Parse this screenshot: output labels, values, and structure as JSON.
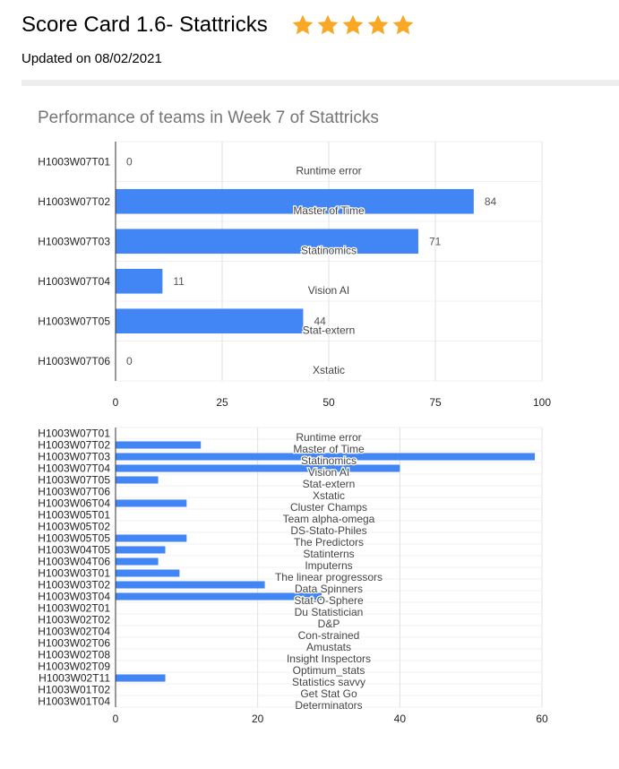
{
  "header": {
    "title": "Score Card 1.6- Stattricks",
    "rating": 5,
    "star_color": "#F9A825",
    "updated": "Updated on 08/02/2021"
  },
  "colors": {
    "bar": "#4285F4",
    "grid": "#e0e0e0",
    "axis": "#333333",
    "label": "#555555"
  },
  "chart_data": [
    {
      "type": "bar",
      "orientation": "horizontal",
      "title": "Performance of teams in Week 7 of Stattricks",
      "categories": [
        "H1003W07T01",
        "H1003W07T02",
        "H1003W07T03",
        "H1003W07T04",
        "H1003W07T05",
        "H1003W07T06"
      ],
      "team_names": [
        "Runtime error",
        "Master of Time",
        "Statinomics",
        "Vision AI",
        "Stat-extern",
        "Xstatic"
      ],
      "values": [
        0,
        84,
        71,
        11,
        44,
        0
      ],
      "xlim": [
        0,
        100
      ],
      "xticks": [
        0,
        25,
        50,
        75,
        100
      ],
      "grid": true,
      "data_labels": true
    },
    {
      "type": "bar",
      "orientation": "horizontal",
      "title": "",
      "categories": [
        "H1003W07T01",
        "H1003W07T02",
        "H1003W07T03",
        "H1003W07T04",
        "H1003W07T05",
        "H1003W07T06",
        "H1003W06T04",
        "H1003W05T01",
        "H1003W05T02",
        "H1003W05T05",
        "H1003W04T05",
        "H1003W04T06",
        "H1003W03T01",
        "H1003W03T02",
        "H1003W03T04",
        "H1003W02T01",
        "H1003W02T02",
        "H1003W02T04",
        "H1003W02T06",
        "H1003W02T08",
        "H1003W02T09",
        "H1003W02T11",
        "H1003W01T02",
        "H1003W01T04"
      ],
      "team_names": [
        "Runtime error",
        "Master of Time",
        "Statinomics",
        "Vision AI",
        "Stat-extern",
        "Xstatic",
        "Cluster Champs",
        "Team alpha-omega",
        "DS-Stato-Philes",
        "The Predictors",
        "Statinterns",
        "Imputerns",
        "The linear progressors",
        "Data Spinners",
        "Stat-O-Sphere",
        "Du Statistician",
        "D&P",
        "Con-strained",
        "Amustats",
        "Insight Inspectors",
        "Optimum_stats",
        "Statistics savvy",
        "Get Stat Go",
        "Determinators"
      ],
      "values": [
        0,
        12,
        59,
        40,
        6,
        0,
        10,
        0,
        0,
        10,
        7,
        6,
        9,
        21,
        29,
        0,
        0,
        0,
        0,
        0,
        0,
        7,
        0,
        0
      ],
      "xlim": [
        0,
        60
      ],
      "xticks": [
        0,
        20,
        40,
        60
      ],
      "grid": true,
      "data_labels": false
    }
  ]
}
